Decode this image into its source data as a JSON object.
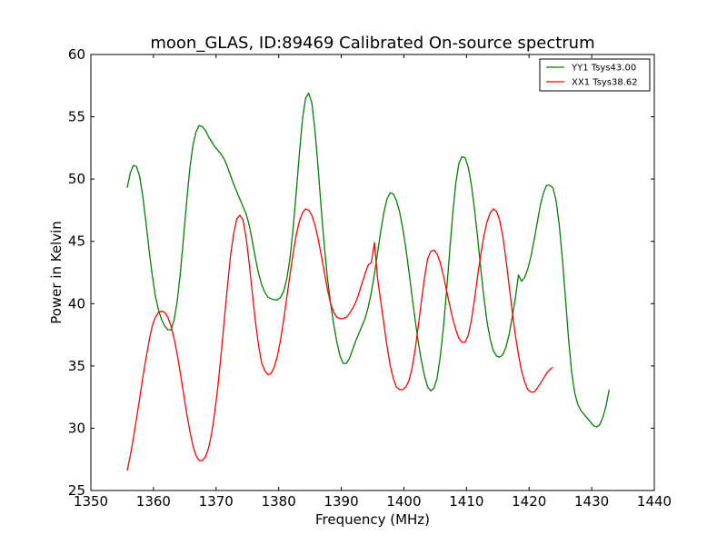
{
  "chart_data": {
    "type": "line",
    "title": "moon_GLAS, ID:89469 Calibrated On-source spectrum",
    "xlabel": "Frequency (MHz)",
    "ylabel": "Power in Kelvin",
    "xlim": [
      1350,
      1440
    ],
    "ylim": [
      25,
      60
    ],
    "xticks": [
      1350,
      1360,
      1370,
      1380,
      1390,
      1400,
      1410,
      1420,
      1430,
      1440
    ],
    "yticks": [
      25,
      30,
      35,
      40,
      45,
      50,
      55,
      60
    ],
    "grid": false,
    "legend_position": "top-right",
    "series": [
      {
        "name": "YY1 Tsys43.00",
        "color": "#008000",
        "points": [
          [
            1355.8,
            49.3
          ],
          [
            1356.3,
            50.5
          ],
          [
            1356.8,
            51.1
          ],
          [
            1357.3,
            51.0
          ],
          [
            1357.8,
            50.2
          ],
          [
            1358.3,
            48.6
          ],
          [
            1358.8,
            46.5
          ],
          [
            1359.3,
            44.3
          ],
          [
            1359.8,
            42.3
          ],
          [
            1360.3,
            40.6
          ],
          [
            1360.8,
            39.5
          ],
          [
            1361.3,
            38.7
          ],
          [
            1361.8,
            38.2
          ],
          [
            1362.3,
            37.9
          ],
          [
            1362.8,
            37.9
          ],
          [
            1363.3,
            38.7
          ],
          [
            1363.8,
            40.2
          ],
          [
            1364.3,
            42.5
          ],
          [
            1364.8,
            45.3
          ],
          [
            1365.3,
            48.2
          ],
          [
            1365.8,
            50.8
          ],
          [
            1366.3,
            52.7
          ],
          [
            1366.8,
            53.8
          ],
          [
            1367.3,
            54.3
          ],
          [
            1367.8,
            54.2
          ],
          [
            1368.3,
            53.9
          ],
          [
            1368.8,
            53.4
          ],
          [
            1369.3,
            53.0
          ],
          [
            1369.8,
            52.6
          ],
          [
            1370.3,
            52.3
          ],
          [
            1370.8,
            52.0
          ],
          [
            1371.3,
            51.6
          ],
          [
            1371.8,
            51.0
          ],
          [
            1372.3,
            50.3
          ],
          [
            1372.8,
            49.6
          ],
          [
            1373.3,
            49.0
          ],
          [
            1373.8,
            48.4
          ],
          [
            1374.3,
            47.8
          ],
          [
            1374.8,
            47.2
          ],
          [
            1375.3,
            46.3
          ],
          [
            1375.8,
            45.0
          ],
          [
            1376.3,
            43.6
          ],
          [
            1376.8,
            42.4
          ],
          [
            1377.3,
            41.5
          ],
          [
            1377.8,
            40.9
          ],
          [
            1378.3,
            40.5
          ],
          [
            1378.8,
            40.4
          ],
          [
            1379.3,
            40.3
          ],
          [
            1379.8,
            40.3
          ],
          [
            1380.3,
            40.5
          ],
          [
            1380.8,
            41.0
          ],
          [
            1381.3,
            42.0
          ],
          [
            1381.8,
            43.6
          ],
          [
            1382.3,
            46.0
          ],
          [
            1382.8,
            48.9
          ],
          [
            1383.3,
            52.0
          ],
          [
            1383.8,
            54.8
          ],
          [
            1384.3,
            56.5
          ],
          [
            1384.8,
            56.9
          ],
          [
            1385.3,
            56.1
          ],
          [
            1385.8,
            53.9
          ],
          [
            1386.3,
            50.9
          ],
          [
            1386.8,
            47.6
          ],
          [
            1387.3,
            44.6
          ],
          [
            1387.8,
            42.0
          ],
          [
            1388.3,
            40.0
          ],
          [
            1388.8,
            38.3
          ],
          [
            1389.3,
            36.9
          ],
          [
            1389.8,
            35.8
          ],
          [
            1390.3,
            35.2
          ],
          [
            1390.8,
            35.2
          ],
          [
            1391.3,
            35.6
          ],
          [
            1391.8,
            36.3
          ],
          [
            1392.3,
            37.0
          ],
          [
            1392.8,
            37.6
          ],
          [
            1393.3,
            38.2
          ],
          [
            1393.8,
            38.8
          ],
          [
            1394.3,
            39.7
          ],
          [
            1394.8,
            40.9
          ],
          [
            1395.3,
            42.4
          ],
          [
            1395.8,
            44.1
          ],
          [
            1396.3,
            45.8
          ],
          [
            1396.8,
            47.3
          ],
          [
            1397.3,
            48.4
          ],
          [
            1397.8,
            48.9
          ],
          [
            1398.3,
            48.8
          ],
          [
            1398.8,
            48.3
          ],
          [
            1399.3,
            47.4
          ],
          [
            1399.8,
            46.1
          ],
          [
            1400.3,
            44.5
          ],
          [
            1400.8,
            42.6
          ],
          [
            1401.3,
            40.6
          ],
          [
            1401.8,
            38.7
          ],
          [
            1402.3,
            36.9
          ],
          [
            1402.8,
            35.4
          ],
          [
            1403.3,
            34.2
          ],
          [
            1403.8,
            33.3
          ],
          [
            1404.3,
            33.0
          ],
          [
            1404.8,
            33.2
          ],
          [
            1405.3,
            34.0
          ],
          [
            1405.8,
            35.7
          ],
          [
            1406.3,
            38.0
          ],
          [
            1406.8,
            40.9
          ],
          [
            1407.3,
            44.1
          ],
          [
            1407.8,
            47.2
          ],
          [
            1408.3,
            49.7
          ],
          [
            1408.8,
            51.3
          ],
          [
            1409.3,
            51.8
          ],
          [
            1409.8,
            51.7
          ],
          [
            1410.3,
            50.9
          ],
          [
            1410.8,
            49.5
          ],
          [
            1411.3,
            47.5
          ],
          [
            1411.8,
            45.2
          ],
          [
            1412.3,
            42.7
          ],
          [
            1412.8,
            40.4
          ],
          [
            1413.3,
            38.5
          ],
          [
            1413.8,
            37.1
          ],
          [
            1414.3,
            36.2
          ],
          [
            1414.8,
            35.8
          ],
          [
            1415.3,
            35.7
          ],
          [
            1415.8,
            35.9
          ],
          [
            1416.3,
            36.5
          ],
          [
            1416.8,
            37.5
          ],
          [
            1417.3,
            38.9
          ],
          [
            1417.8,
            40.4
          ],
          [
            1418.3,
            42.3
          ],
          [
            1418.8,
            41.8
          ],
          [
            1419.3,
            42.1
          ],
          [
            1419.8,
            42.8
          ],
          [
            1420.3,
            43.8
          ],
          [
            1420.8,
            45.1
          ],
          [
            1421.3,
            46.5
          ],
          [
            1421.8,
            47.9
          ],
          [
            1422.3,
            48.9
          ],
          [
            1422.8,
            49.5
          ],
          [
            1423.3,
            49.5
          ],
          [
            1423.8,
            49.3
          ],
          [
            1424.3,
            48.3
          ],
          [
            1424.8,
            46.4
          ],
          [
            1425.3,
            43.7
          ],
          [
            1425.8,
            40.5
          ],
          [
            1426.3,
            37.2
          ],
          [
            1426.8,
            34.5
          ],
          [
            1427.3,
            32.8
          ],
          [
            1427.8,
            31.9
          ],
          [
            1428.3,
            31.4
          ],
          [
            1428.8,
            31.1
          ],
          [
            1429.3,
            30.8
          ],
          [
            1429.8,
            30.5
          ],
          [
            1430.3,
            30.2
          ],
          [
            1430.8,
            30.1
          ],
          [
            1431.3,
            30.3
          ],
          [
            1431.8,
            30.9
          ],
          [
            1432.3,
            31.8
          ],
          [
            1432.8,
            33.1
          ]
        ]
      },
      {
        "name": "XX1 Tsys38.62",
        "color": "#ff0000",
        "points": [
          [
            1355.8,
            26.6
          ],
          [
            1356.3,
            27.8
          ],
          [
            1356.8,
            29.2
          ],
          [
            1357.3,
            30.8
          ],
          [
            1357.8,
            32.4
          ],
          [
            1358.3,
            34.1
          ],
          [
            1358.8,
            35.6
          ],
          [
            1359.3,
            37.0
          ],
          [
            1359.8,
            38.2
          ],
          [
            1360.3,
            38.9
          ],
          [
            1360.8,
            39.3
          ],
          [
            1361.3,
            39.4
          ],
          [
            1361.8,
            39.3
          ],
          [
            1362.3,
            38.9
          ],
          [
            1362.8,
            38.2
          ],
          [
            1363.3,
            37.2
          ],
          [
            1363.8,
            35.9
          ],
          [
            1364.3,
            34.4
          ],
          [
            1364.8,
            32.8
          ],
          [
            1365.3,
            31.2
          ],
          [
            1365.8,
            29.8
          ],
          [
            1366.3,
            28.6
          ],
          [
            1366.8,
            27.8
          ],
          [
            1367.3,
            27.4
          ],
          [
            1367.8,
            27.4
          ],
          [
            1368.3,
            27.7
          ],
          [
            1368.8,
            28.4
          ],
          [
            1369.3,
            29.6
          ],
          [
            1369.8,
            31.3
          ],
          [
            1370.3,
            33.4
          ],
          [
            1370.8,
            35.9
          ],
          [
            1371.3,
            38.6
          ],
          [
            1371.8,
            41.3
          ],
          [
            1372.3,
            43.8
          ],
          [
            1372.8,
            45.6
          ],
          [
            1373.3,
            46.8
          ],
          [
            1373.8,
            47.1
          ],
          [
            1374.3,
            46.7
          ],
          [
            1374.8,
            45.3
          ],
          [
            1375.3,
            43.2
          ],
          [
            1375.8,
            40.8
          ],
          [
            1376.3,
            38.5
          ],
          [
            1376.8,
            36.6
          ],
          [
            1377.3,
            35.2
          ],
          [
            1377.8,
            34.6
          ],
          [
            1378.3,
            34.3
          ],
          [
            1378.8,
            34.4
          ],
          [
            1379.3,
            34.9
          ],
          [
            1379.8,
            35.8
          ],
          [
            1380.3,
            37.1
          ],
          [
            1380.8,
            38.7
          ],
          [
            1381.3,
            40.5
          ],
          [
            1381.8,
            42.3
          ],
          [
            1382.3,
            44.0
          ],
          [
            1382.8,
            45.5
          ],
          [
            1383.3,
            46.6
          ],
          [
            1383.8,
            47.3
          ],
          [
            1384.3,
            47.6
          ],
          [
            1384.8,
            47.5
          ],
          [
            1385.3,
            47.1
          ],
          [
            1385.8,
            46.3
          ],
          [
            1386.3,
            45.2
          ],
          [
            1386.8,
            43.9
          ],
          [
            1387.3,
            42.5
          ],
          [
            1387.8,
            41.1
          ],
          [
            1388.3,
            40.0
          ],
          [
            1388.8,
            39.3
          ],
          [
            1389.3,
            38.9
          ],
          [
            1389.8,
            38.8
          ],
          [
            1390.3,
            38.8
          ],
          [
            1390.8,
            38.9
          ],
          [
            1391.3,
            39.2
          ],
          [
            1391.8,
            39.6
          ],
          [
            1392.3,
            40.1
          ],
          [
            1392.8,
            40.8
          ],
          [
            1393.3,
            41.6
          ],
          [
            1393.8,
            42.4
          ],
          [
            1394.3,
            43.1
          ],
          [
            1394.8,
            43.3
          ],
          [
            1395.3,
            44.9
          ],
          [
            1395.8,
            42.0
          ],
          [
            1396.3,
            40.2
          ],
          [
            1396.8,
            38.4
          ],
          [
            1397.3,
            36.6
          ],
          [
            1397.8,
            35.1
          ],
          [
            1398.3,
            34.0
          ],
          [
            1398.8,
            33.3
          ],
          [
            1399.3,
            33.1
          ],
          [
            1399.8,
            33.1
          ],
          [
            1400.3,
            33.3
          ],
          [
            1400.8,
            33.8
          ],
          [
            1401.3,
            34.8
          ],
          [
            1401.8,
            36.3
          ],
          [
            1402.3,
            38.2
          ],
          [
            1402.8,
            40.2
          ],
          [
            1403.3,
            42.1
          ],
          [
            1403.8,
            43.6
          ],
          [
            1404.3,
            44.2
          ],
          [
            1404.8,
            44.3
          ],
          [
            1405.3,
            44.0
          ],
          [
            1405.8,
            43.3
          ],
          [
            1406.3,
            42.3
          ],
          [
            1406.8,
            41.1
          ],
          [
            1407.3,
            39.9
          ],
          [
            1407.8,
            38.8
          ],
          [
            1408.3,
            37.9
          ],
          [
            1408.8,
            37.2
          ],
          [
            1409.3,
            36.9
          ],
          [
            1409.8,
            36.9
          ],
          [
            1410.3,
            37.5
          ],
          [
            1410.8,
            38.7
          ],
          [
            1411.3,
            40.4
          ],
          [
            1411.8,
            42.3
          ],
          [
            1412.3,
            44.0
          ],
          [
            1412.8,
            45.5
          ],
          [
            1413.3,
            46.6
          ],
          [
            1413.8,
            47.3
          ],
          [
            1414.3,
            47.6
          ],
          [
            1414.8,
            47.4
          ],
          [
            1415.3,
            46.7
          ],
          [
            1415.8,
            45.4
          ],
          [
            1416.3,
            43.6
          ],
          [
            1416.8,
            41.5
          ],
          [
            1417.3,
            39.4
          ],
          [
            1417.8,
            37.5
          ],
          [
            1418.3,
            35.9
          ],
          [
            1418.8,
            34.6
          ],
          [
            1419.3,
            33.7
          ],
          [
            1419.8,
            33.1
          ],
          [
            1420.3,
            32.9
          ],
          [
            1420.8,
            32.9
          ],
          [
            1421.3,
            33.2
          ],
          [
            1421.8,
            33.6
          ],
          [
            1422.3,
            34.0
          ],
          [
            1422.8,
            34.4
          ],
          [
            1423.3,
            34.7
          ],
          [
            1423.8,
            34.9
          ]
        ]
      }
    ]
  }
}
